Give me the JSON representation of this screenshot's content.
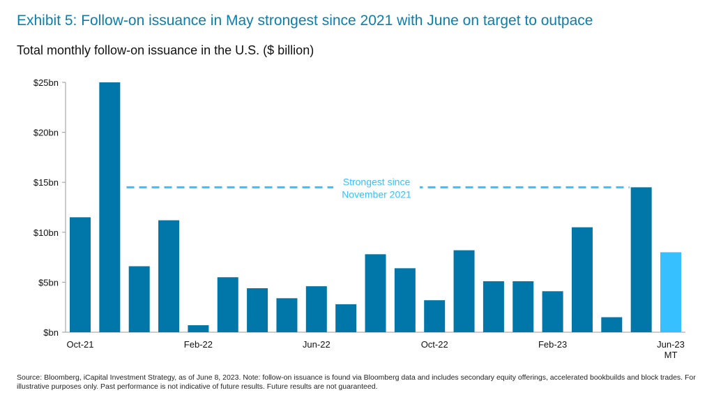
{
  "title": "Exhibit 5: Follow-on issuance in May strongest since 2021 with June on target to outpace",
  "subtitle": "Total monthly follow-on issuance in the U.S. ($ billion)",
  "source": "Source: Bloomberg, iCapital Investment Strategy, as of June 8, 2023. Note: follow-on issuance is found via Bloomberg data and includes secondary equity offerings, accelerated bookbuilds and block trades. For illustrative purposes only. Past performance is not indicative of future results. Future results are not guaranteed.",
  "colors": {
    "bar": "#0077a8",
    "highlight_bar": "#36c0ff",
    "reference_line": "#36c0ff",
    "title": "#0a7fae"
  },
  "chart_data": {
    "type": "bar",
    "categories": [
      "Oct-21",
      "Nov-21",
      "Dec-21",
      "Jan-22",
      "Feb-22",
      "Mar-22",
      "Apr-22",
      "May-22",
      "Jun-22",
      "Jul-22",
      "Aug-22",
      "Sep-22",
      "Oct-22",
      "Nov-22",
      "Dec-22",
      "Jan-23",
      "Feb-23",
      "Mar-23",
      "Apr-23",
      "May-23",
      "Jun-23"
    ],
    "values": [
      11.5,
      25.0,
      6.6,
      11.2,
      0.7,
      5.5,
      4.4,
      3.4,
      4.6,
      2.8,
      7.8,
      6.4,
      3.2,
      8.2,
      5.1,
      5.1,
      4.1,
      10.5,
      1.5,
      14.5,
      8.0
    ],
    "highlight_index": 20,
    "ylim": [
      0,
      25
    ],
    "yticks": [
      0,
      5,
      10,
      15,
      20,
      25
    ],
    "ytick_labels": [
      "$bn",
      "$5bn",
      "$10bn",
      "$15bn",
      "$20bn",
      "$25bn"
    ],
    "xtick_labels": [
      {
        "index": 0,
        "label": "Oct-21"
      },
      {
        "index": 4,
        "label": "Feb-22"
      },
      {
        "index": 8,
        "label": "Jun-22"
      },
      {
        "index": 12,
        "label": "Oct-22"
      },
      {
        "index": 16,
        "label": "Feb-23"
      },
      {
        "index": 20,
        "label": "Jun-23",
        "sublabel": "MT"
      }
    ],
    "reference_line": {
      "value": 14.5,
      "from_index": 1.5,
      "to_index": 19,
      "label_line1": "Strongest since",
      "label_line2": "November 2021"
    },
    "grid": false,
    "xlabel": "",
    "ylabel": ""
  }
}
